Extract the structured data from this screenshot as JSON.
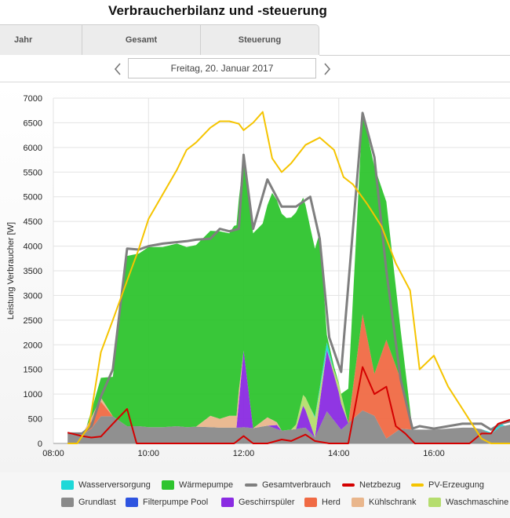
{
  "header": {
    "title": "Verbraucherbilanz und -steuerung"
  },
  "tabs": [
    {
      "label": "Jahr"
    },
    {
      "label": "Gesamt"
    },
    {
      "label": "Steuerung"
    }
  ],
  "date_nav": {
    "date": "Freitag, 20. Januar 2017"
  },
  "chart_data": {
    "type": "area",
    "ylabel": "Leistung Verbraucher [W]",
    "xlabel": "",
    "ylim": [
      0,
      7000
    ],
    "yticks": [
      0,
      500,
      1000,
      1500,
      2000,
      2500,
      3000,
      3500,
      4000,
      4500,
      5000,
      5500,
      6000,
      6500,
      7000
    ],
    "xlim": [
      8.0,
      17.6
    ],
    "xticks": [
      {
        "value": 8,
        "label": "08:00"
      },
      {
        "value": 10,
        "label": "10:00"
      },
      {
        "value": 12,
        "label": "12:00"
      },
      {
        "value": 14,
        "label": "14:00"
      },
      {
        "value": 16,
        "label": "16:00"
      }
    ],
    "grid": true,
    "legend_position": "bottom",
    "stack_order": [
      "Grundlast",
      "Filterpumpe Pool",
      "Geschirrspüler",
      "Herd",
      "Kühlschrank",
      "Waschmaschine",
      "Wasserversorgung",
      "Wärmepumpe"
    ],
    "series": [
      {
        "name": "Wasserversorgung",
        "kind": "area",
        "color": "#1ed8d8",
        "points": [
          [
            8.3,
            0
          ],
          [
            13.4,
            0
          ],
          [
            13.58,
            50
          ],
          [
            13.75,
            150
          ],
          [
            13.9,
            0
          ],
          [
            17.0,
            0
          ],
          [
            17.25,
            40
          ],
          [
            17.35,
            80
          ],
          [
            17.5,
            0
          ],
          [
            17.6,
            0
          ]
        ]
      },
      {
        "name": "Wärmepumpe",
        "kind": "area",
        "color": "#2ec42e",
        "points": [
          [
            8.3,
            0
          ],
          [
            8.7,
            0
          ],
          [
            9.0,
            400
          ],
          [
            9.25,
            800
          ],
          [
            9.55,
            3450
          ],
          [
            9.8,
            3500
          ],
          [
            10.0,
            3650
          ],
          [
            10.3,
            3650
          ],
          [
            10.6,
            3700
          ],
          [
            10.8,
            3650
          ],
          [
            11.0,
            3680
          ],
          [
            11.3,
            3750
          ],
          [
            11.5,
            3800
          ],
          [
            11.7,
            3700
          ],
          [
            11.8,
            3850
          ],
          [
            12.0,
            3900
          ],
          [
            12.2,
            3950
          ],
          [
            12.4,
            4000
          ],
          [
            12.6,
            4600
          ],
          [
            12.9,
            4300
          ],
          [
            13.1,
            4300
          ],
          [
            13.3,
            3900
          ],
          [
            13.6,
            3150
          ],
          [
            13.75,
            150
          ],
          [
            14.05,
            0
          ],
          [
            14.2,
            700
          ],
          [
            14.5,
            4100
          ],
          [
            14.75,
            4200
          ],
          [
            15.0,
            2800
          ],
          [
            15.3,
            1000
          ],
          [
            15.55,
            0
          ],
          [
            17.6,
            0
          ]
        ]
      },
      {
        "name": "Gesamtverbrauch",
        "kind": "line",
        "color": "#7f7f7f",
        "points": [
          [
            8.3,
            200
          ],
          [
            8.6,
            200
          ],
          [
            8.8,
            350
          ],
          [
            9.0,
            950
          ],
          [
            9.25,
            1500
          ],
          [
            9.55,
            3950
          ],
          [
            9.8,
            3930
          ],
          [
            10.0,
            4000
          ],
          [
            10.3,
            4050
          ],
          [
            10.6,
            4080
          ],
          [
            10.8,
            4100
          ],
          [
            11.0,
            4130
          ],
          [
            11.3,
            4150
          ],
          [
            11.5,
            4350
          ],
          [
            11.7,
            4300
          ],
          [
            11.9,
            4350
          ],
          [
            12.0,
            5850
          ],
          [
            12.2,
            4350
          ],
          [
            12.5,
            5350
          ],
          [
            12.8,
            4800
          ],
          [
            13.1,
            4800
          ],
          [
            13.4,
            5000
          ],
          [
            13.6,
            4150
          ],
          [
            13.8,
            2150
          ],
          [
            14.05,
            1450
          ],
          [
            14.5,
            6700
          ],
          [
            14.75,
            5800
          ],
          [
            15.0,
            3500
          ],
          [
            15.3,
            1300
          ],
          [
            15.55,
            300
          ],
          [
            15.7,
            350
          ],
          [
            16.0,
            300
          ],
          [
            16.3,
            350
          ],
          [
            16.6,
            400
          ],
          [
            16.8,
            400
          ],
          [
            17.0,
            400
          ],
          [
            17.2,
            280
          ],
          [
            17.4,
            400
          ],
          [
            17.6,
            450
          ]
        ]
      },
      {
        "name": "Netzbezug",
        "kind": "line",
        "color": "#d40000",
        "points": [
          [
            8.3,
            220
          ],
          [
            8.6,
            150
          ],
          [
            8.8,
            120
          ],
          [
            9.0,
            140
          ],
          [
            9.25,
            400
          ],
          [
            9.55,
            700
          ],
          [
            9.75,
            0
          ],
          [
            10.5,
            0
          ],
          [
            11.8,
            0
          ],
          [
            12.0,
            150
          ],
          [
            12.2,
            0
          ],
          [
            12.5,
            0
          ],
          [
            12.8,
            80
          ],
          [
            13.0,
            50
          ],
          [
            13.3,
            180
          ],
          [
            13.5,
            50
          ],
          [
            13.8,
            0
          ],
          [
            14.0,
            0
          ],
          [
            14.2,
            0
          ],
          [
            14.5,
            1550
          ],
          [
            14.75,
            1000
          ],
          [
            15.0,
            1150
          ],
          [
            15.2,
            350
          ],
          [
            15.4,
            200
          ],
          [
            15.6,
            0
          ],
          [
            16.3,
            0
          ],
          [
            16.75,
            0
          ],
          [
            17.0,
            200
          ],
          [
            17.2,
            200
          ],
          [
            17.35,
            400
          ],
          [
            17.6,
            480
          ]
        ]
      },
      {
        "name": "PV-Erzeugung",
        "kind": "line",
        "color": "#f5c400",
        "points": [
          [
            8.3,
            0
          ],
          [
            8.5,
            0
          ],
          [
            8.75,
            350
          ],
          [
            9.0,
            1850
          ],
          [
            9.25,
            2500
          ],
          [
            9.55,
            3300
          ],
          [
            9.8,
            3950
          ],
          [
            10.0,
            4550
          ],
          [
            10.3,
            5050
          ],
          [
            10.6,
            5550
          ],
          [
            10.8,
            5950
          ],
          [
            11.0,
            6100
          ],
          [
            11.3,
            6400
          ],
          [
            11.5,
            6530
          ],
          [
            11.7,
            6530
          ],
          [
            11.9,
            6480
          ],
          [
            12.0,
            6350
          ],
          [
            12.2,
            6500
          ],
          [
            12.4,
            6720
          ],
          [
            12.6,
            5780
          ],
          [
            12.8,
            5500
          ],
          [
            13.0,
            5680
          ],
          [
            13.3,
            6050
          ],
          [
            13.6,
            6200
          ],
          [
            13.9,
            5950
          ],
          [
            14.1,
            5400
          ],
          [
            14.3,
            5250
          ],
          [
            14.6,
            4850
          ],
          [
            14.9,
            4400
          ],
          [
            15.2,
            3650
          ],
          [
            15.5,
            3100
          ],
          [
            15.7,
            1500
          ],
          [
            16.0,
            1780
          ],
          [
            16.3,
            1150
          ],
          [
            16.6,
            700
          ],
          [
            16.8,
            400
          ],
          [
            17.0,
            100
          ],
          [
            17.2,
            0
          ],
          [
            17.6,
            0
          ]
        ]
      },
      {
        "name": "Grundlast",
        "kind": "area",
        "color": "#8a8a8a",
        "points": [
          [
            8.3,
            180
          ],
          [
            8.6,
            170
          ],
          [
            8.8,
            300
          ],
          [
            9.0,
            550
          ],
          [
            9.25,
            550
          ],
          [
            9.55,
            350
          ],
          [
            9.8,
            350
          ],
          [
            10.0,
            330
          ],
          [
            10.3,
            330
          ],
          [
            10.6,
            350
          ],
          [
            10.8,
            330
          ],
          [
            11.0,
            340
          ],
          [
            11.3,
            330
          ],
          [
            11.5,
            320
          ],
          [
            11.7,
            320
          ],
          [
            11.9,
            320
          ],
          [
            12.0,
            330
          ],
          [
            12.2,
            310
          ],
          [
            12.5,
            360
          ],
          [
            12.8,
            260
          ],
          [
            13.0,
            280
          ],
          [
            13.3,
            320
          ],
          [
            13.5,
            120
          ],
          [
            13.75,
            650
          ],
          [
            14.05,
            280
          ],
          [
            14.5,
            670
          ],
          [
            14.75,
            560
          ],
          [
            15.0,
            100
          ],
          [
            15.3,
            300
          ],
          [
            15.55,
            280
          ],
          [
            15.7,
            280
          ],
          [
            16.0,
            280
          ],
          [
            16.3,
            300
          ],
          [
            16.6,
            320
          ],
          [
            16.8,
            320
          ],
          [
            17.0,
            290
          ],
          [
            17.2,
            190
          ],
          [
            17.4,
            340
          ],
          [
            17.6,
            380
          ]
        ]
      },
      {
        "name": "Filterpumpe Pool",
        "kind": "area",
        "color": "#2e54e0",
        "points": [
          [
            8.3,
            0
          ],
          [
            17.6,
            0
          ]
        ]
      },
      {
        "name": "Geschirrspüler",
        "kind": "area",
        "color": "#8a2be2",
        "points": [
          [
            8.3,
            0
          ],
          [
            11.75,
            0
          ],
          [
            11.85,
            0
          ],
          [
            12.0,
            1550
          ],
          [
            12.2,
            0
          ],
          [
            12.5,
            0
          ],
          [
            12.7,
            80
          ],
          [
            12.8,
            0
          ],
          [
            13.1,
            0
          ],
          [
            13.25,
            450
          ],
          [
            13.5,
            0
          ],
          [
            13.75,
            1250
          ],
          [
            14.0,
            700
          ],
          [
            14.2,
            0
          ],
          [
            17.6,
            0
          ]
        ]
      },
      {
        "name": "Herd",
        "kind": "area",
        "color": "#f06a44",
        "points": [
          [
            8.3,
            0
          ],
          [
            8.6,
            0
          ],
          [
            8.8,
            150
          ],
          [
            9.0,
            300
          ],
          [
            9.25,
            0
          ],
          [
            14.2,
            0
          ],
          [
            14.5,
            1950
          ],
          [
            14.75,
            850
          ],
          [
            15.0,
            2000
          ],
          [
            15.3,
            1000
          ],
          [
            15.55,
            0
          ],
          [
            17.6,
            0
          ]
        ]
      },
      {
        "name": "Kühlschrank",
        "kind": "area",
        "color": "#e9b68c",
        "points": [
          [
            8.3,
            0
          ],
          [
            8.6,
            0
          ],
          [
            8.8,
            80
          ],
          [
            9.0,
            80
          ],
          [
            9.25,
            0
          ],
          [
            10.8,
            0
          ],
          [
            11.0,
            0
          ],
          [
            11.3,
            230
          ],
          [
            11.5,
            180
          ],
          [
            11.7,
            240
          ],
          [
            11.9,
            240
          ],
          [
            12.0,
            0
          ],
          [
            12.2,
            0
          ],
          [
            12.5,
            170
          ],
          [
            12.8,
            0
          ],
          [
            14.05,
            0
          ],
          [
            14.5,
            0
          ],
          [
            17.6,
            0
          ]
        ]
      },
      {
        "name": "Waschmaschine",
        "kind": "area",
        "color": "#b5dd6e",
        "points": [
          [
            8.3,
            0
          ],
          [
            13.0,
            0
          ],
          [
            13.25,
            220
          ],
          [
            13.5,
            400
          ],
          [
            13.75,
            0
          ],
          [
            14.05,
            200
          ],
          [
            14.2,
            0
          ],
          [
            17.6,
            0
          ]
        ]
      }
    ]
  },
  "legend": {
    "row1": [
      "Wasserversorgung",
      "Wärmepumpe",
      "Gesamtverbrauch",
      "Netzbezug",
      "PV-Erzeugung"
    ],
    "row2": [
      "Grundlast",
      "Filterpumpe Pool",
      "Geschirrspüler",
      "Herd",
      "Kühlschrank",
      "Waschmaschine"
    ]
  },
  "colors": {
    "Wasserversorgung": "#1ed8d8",
    "Wärmepumpe": "#2ec42e",
    "Gesamtverbrauch": "#7f7f7f",
    "Netzbezug": "#d40000",
    "PV-Erzeugung": "#f5c400",
    "Grundlast": "#8a8a8a",
    "Filterpumpe Pool": "#2e54e0",
    "Geschirrspüler": "#8a2be2",
    "Herd": "#f06a44",
    "Kühlschrank": "#e9b68c",
    "Waschmaschine": "#b5dd6e"
  }
}
